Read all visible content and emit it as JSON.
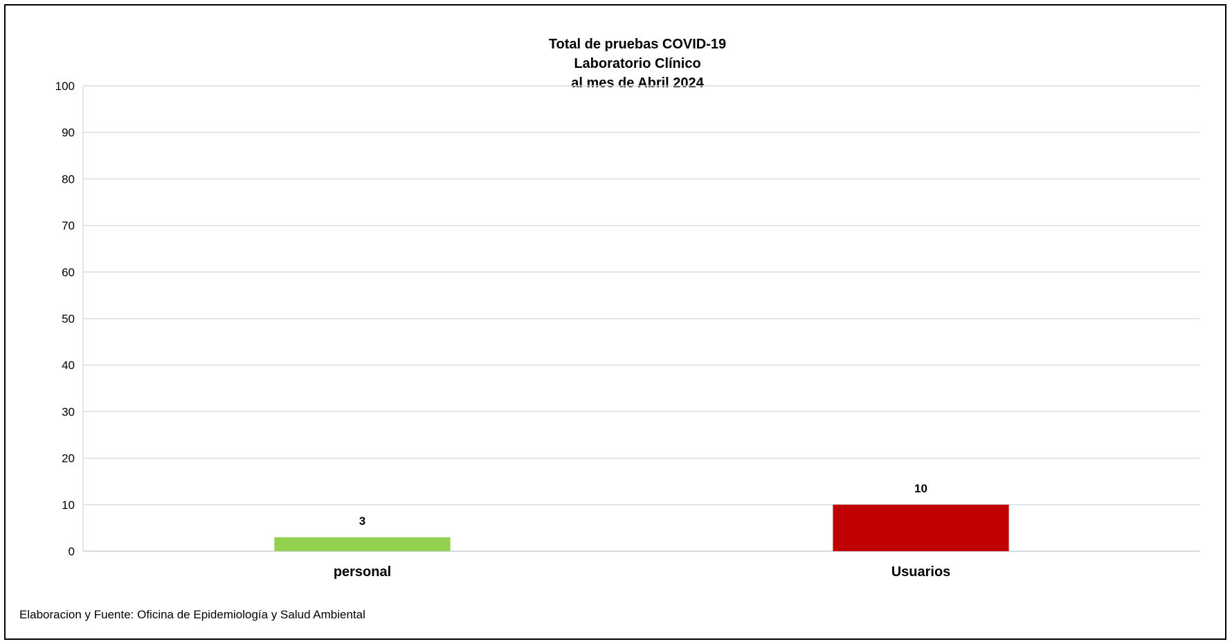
{
  "chart_data": {
    "type": "bar",
    "title_lines": [
      "Total de pruebas COVID-19",
      "Laboratorio Clínico",
      "al mes de Abril 2024"
    ],
    "categories": [
      "personal",
      "Usuarios"
    ],
    "series": [
      {
        "values": [
          3,
          10
        ],
        "colors": [
          "#92d050",
          "#c00000"
        ]
      }
    ],
    "data_labels": [
      "3",
      "10"
    ],
    "ylim": [
      0,
      100
    ],
    "yticks": [
      0,
      10,
      20,
      30,
      40,
      50,
      60,
      70,
      80,
      90,
      100
    ],
    "grid": true,
    "xlabel": "",
    "ylabel": "",
    "legend": "none"
  },
  "footer": {
    "source": "Elaboracion y Fuente: Oficina de Epidemiología y Salud Ambiental"
  }
}
